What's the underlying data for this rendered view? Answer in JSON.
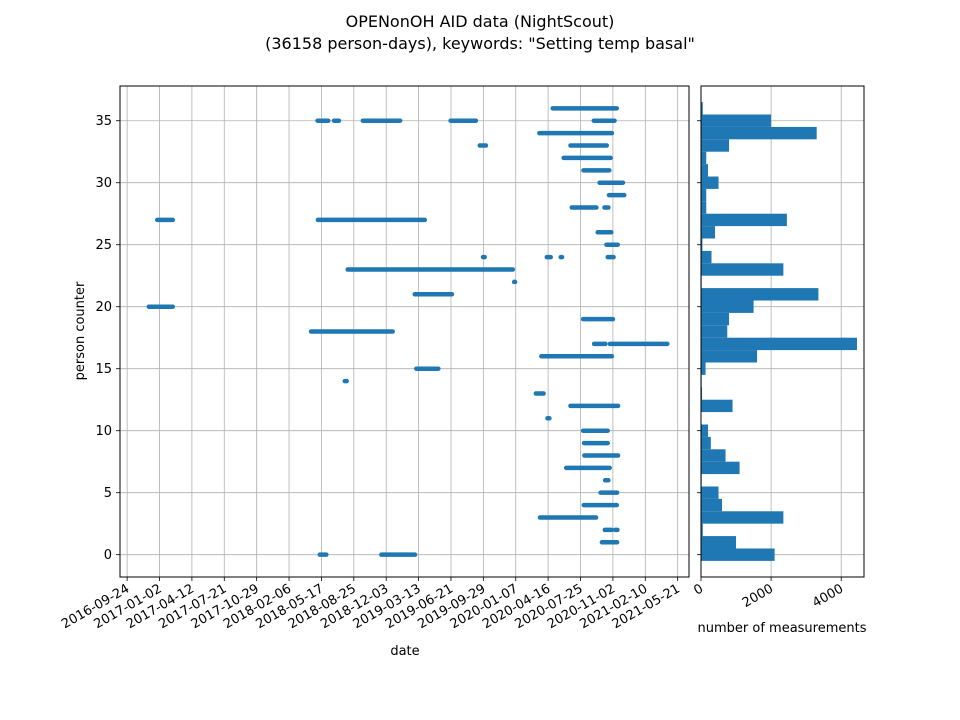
{
  "chart_data": [
    {
      "type": "scatter",
      "title": "OPENonOH AID data (NightScout)\n(36158 person-days), keywords: \"Setting temp basal\"",
      "title_lines": [
        "OPENonOH AID data (NightScout)",
        "(36158 person-days), keywords: \"Setting temp basal\""
      ],
      "xlabel": "date",
      "ylabel": "person counter",
      "x_ticks": [
        "2016-09-24",
        "2017-01-02",
        "2017-04-12",
        "2017-07-21",
        "2017-10-29",
        "2018-02-06",
        "2018-05-17",
        "2018-08-25",
        "2018-12-03",
        "2019-03-13",
        "2019-06-21",
        "2019-09-29",
        "2020-01-07",
        "2020-04-16",
        "2020-07-25",
        "2020-11-02",
        "2021-02-10",
        "2021-05-21"
      ],
      "xlim": [
        "2016-09-02",
        "2021-06-25"
      ],
      "y_ticks": [
        0,
        5,
        10,
        15,
        20,
        25,
        30,
        35
      ],
      "ylim": [
        -1.8,
        37.8
      ],
      "grid": true,
      "marker_color": "#1f77b4",
      "segments": [
        {
          "person": 0,
          "start": "2018-05-12",
          "end": "2018-06-01"
        },
        {
          "person": 0,
          "start": "2018-11-18",
          "end": "2019-03-02"
        },
        {
          "person": 1,
          "start": "2020-09-29",
          "end": "2020-11-15"
        },
        {
          "person": 2,
          "start": "2020-10-08",
          "end": "2020-10-29"
        },
        {
          "person": 2,
          "start": "2020-11-09",
          "end": "2020-11-16"
        },
        {
          "person": 3,
          "start": "2020-03-22",
          "end": "2020-09-11"
        },
        {
          "person": 4,
          "start": "2020-08-04",
          "end": "2020-11-14"
        },
        {
          "person": 5,
          "start": "2020-09-25",
          "end": "2020-11-15"
        },
        {
          "person": 6,
          "start": "2020-10-09",
          "end": "2020-10-19"
        },
        {
          "person": 7,
          "start": "2020-06-11",
          "end": "2020-10-23"
        },
        {
          "person": 8,
          "start": "2020-08-06",
          "end": "2020-11-18"
        },
        {
          "person": 9,
          "start": "2020-08-05",
          "end": "2020-10-17"
        },
        {
          "person": 10,
          "start": "2020-08-02",
          "end": "2020-10-17"
        },
        {
          "person": 11,
          "start": "2020-04-14",
          "end": "2020-04-20"
        },
        {
          "person": 12,
          "start": "2020-06-24",
          "end": "2020-11-18"
        },
        {
          "person": 13,
          "start": "2020-03-09",
          "end": "2020-04-02"
        },
        {
          "person": 14,
          "start": "2018-07-28",
          "end": "2018-08-03"
        },
        {
          "person": 15,
          "start": "2019-03-06",
          "end": "2019-05-13"
        },
        {
          "person": 16,
          "start": "2020-03-26",
          "end": "2020-10-30"
        },
        {
          "person": 17,
          "start": "2020-09-05",
          "end": "2020-10-10"
        },
        {
          "person": 17,
          "start": "2020-10-24",
          "end": "2021-04-19"
        },
        {
          "person": 18,
          "start": "2018-04-15",
          "end": "2018-12-23"
        },
        {
          "person": 19,
          "start": "2020-08-02",
          "end": "2020-11-02"
        },
        {
          "person": 20,
          "start": "2016-11-30",
          "end": "2017-02-12"
        },
        {
          "person": 21,
          "start": "2019-03-01",
          "end": "2019-06-24"
        },
        {
          "person": 22,
          "start": "2020-01-02",
          "end": "2020-01-05"
        },
        {
          "person": 23,
          "start": "2018-08-06",
          "end": "2019-12-29"
        },
        {
          "person": 24,
          "start": "2019-09-28",
          "end": "2019-10-03"
        },
        {
          "person": 24,
          "start": "2020-04-12",
          "end": "2020-04-24"
        },
        {
          "person": 24,
          "start": "2020-05-25",
          "end": "2020-05-29"
        },
        {
          "person": 24,
          "start": "2020-10-17",
          "end": "2020-11-04"
        },
        {
          "person": 25,
          "start": "2020-10-13",
          "end": "2020-11-17"
        },
        {
          "person": 26,
          "start": "2020-09-16",
          "end": "2020-10-28"
        },
        {
          "person": 27,
          "start": "2016-12-26",
          "end": "2017-02-12"
        },
        {
          "person": 27,
          "start": "2018-05-06",
          "end": "2019-04-01"
        },
        {
          "person": 28,
          "start": "2020-06-28",
          "end": "2020-09-12"
        },
        {
          "person": 28,
          "start": "2020-10-07",
          "end": "2020-10-19"
        },
        {
          "person": 29,
          "start": "2020-10-21",
          "end": "2020-12-07"
        },
        {
          "person": 30,
          "start": "2020-09-22",
          "end": "2020-12-03"
        },
        {
          "person": 31,
          "start": "2020-08-03",
          "end": "2020-10-22"
        },
        {
          "person": 32,
          "start": "2020-06-03",
          "end": "2020-10-26"
        },
        {
          "person": 33,
          "start": "2019-09-18",
          "end": "2019-10-07"
        },
        {
          "person": 33,
          "start": "2020-06-24",
          "end": "2020-10-14"
        },
        {
          "person": 34,
          "start": "2020-03-20",
          "end": "2020-10-30"
        },
        {
          "person": 35,
          "start": "2018-05-05",
          "end": "2018-06-07"
        },
        {
          "person": 35,
          "start": "2018-06-25",
          "end": "2018-07-10"
        },
        {
          "person": 35,
          "start": "2018-09-22",
          "end": "2019-01-15"
        },
        {
          "person": 35,
          "start": "2019-06-20",
          "end": "2019-09-06"
        },
        {
          "person": 35,
          "start": "2020-09-04",
          "end": "2020-11-07"
        },
        {
          "person": 36,
          "start": "2020-04-30",
          "end": "2020-11-14"
        }
      ]
    },
    {
      "type": "bar",
      "orientation": "horizontal",
      "xlabel": "number of measurements",
      "x_ticks": [
        0,
        2000,
        4000
      ],
      "xlim": [
        0,
        4650
      ],
      "ylim": [
        -1.8,
        37.8
      ],
      "grid": true,
      "bar_color": "#1f77b4",
      "categories": [
        0,
        1,
        2,
        3,
        4,
        5,
        6,
        7,
        8,
        9,
        10,
        11,
        12,
        13,
        14,
        15,
        16,
        17,
        18,
        19,
        20,
        21,
        22,
        23,
        24,
        25,
        26,
        27,
        28,
        29,
        30,
        31,
        32,
        33,
        34,
        35,
        36
      ],
      "values": [
        2100,
        1000,
        50,
        2350,
        600,
        500,
        20,
        1100,
        700,
        280,
        200,
        10,
        900,
        30,
        20,
        130,
        1600,
        4450,
        750,
        800,
        1500,
        3350,
        20,
        2350,
        300,
        40,
        400,
        2450,
        150,
        150,
        500,
        200,
        150,
        800,
        3300,
        2000,
        50
      ]
    }
  ]
}
